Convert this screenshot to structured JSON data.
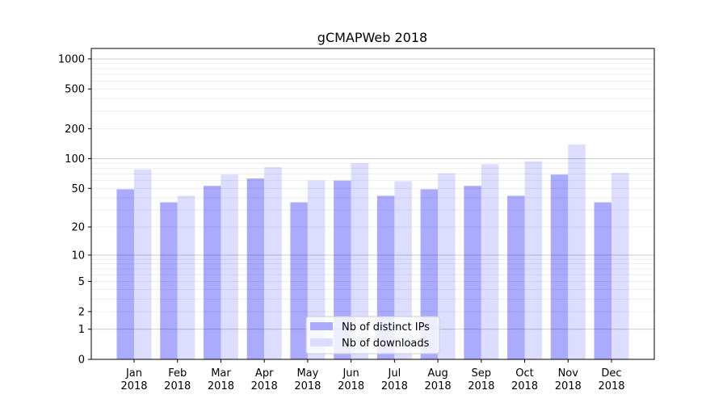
{
  "chart_data": {
    "type": "bar",
    "title": "gCMAPWeb 2018",
    "xlabel": "",
    "ylabel": "",
    "yscale": "log(1+y)",
    "ylim": [
      0,
      1272
    ],
    "yticks": [
      0,
      1,
      2,
      5,
      10,
      20,
      50,
      100,
      200,
      500,
      1000
    ],
    "grid": true,
    "legend_position": "bottom-center",
    "categories": [
      "Jan\n2018",
      "Feb\n2018",
      "Mar\n2018",
      "Apr\n2018",
      "May\n2018",
      "Jun\n2018",
      "Jul\n2018",
      "Aug\n2018",
      "Sep\n2018",
      "Oct\n2018",
      "Nov\n2018",
      "Dec\n2018"
    ],
    "series": [
      {
        "name": "Nb of distinct IPs",
        "color": "#aaaaff",
        "values": [
          49,
          36,
          53,
          63,
          36,
          60,
          42,
          49,
          53,
          42,
          69,
          36
        ]
      },
      {
        "name": "Nb of downloads",
        "color": "#ddddff",
        "values": [
          78,
          42,
          69,
          82,
          60,
          90,
          59,
          71,
          88,
          94,
          139,
          72
        ]
      }
    ]
  }
}
